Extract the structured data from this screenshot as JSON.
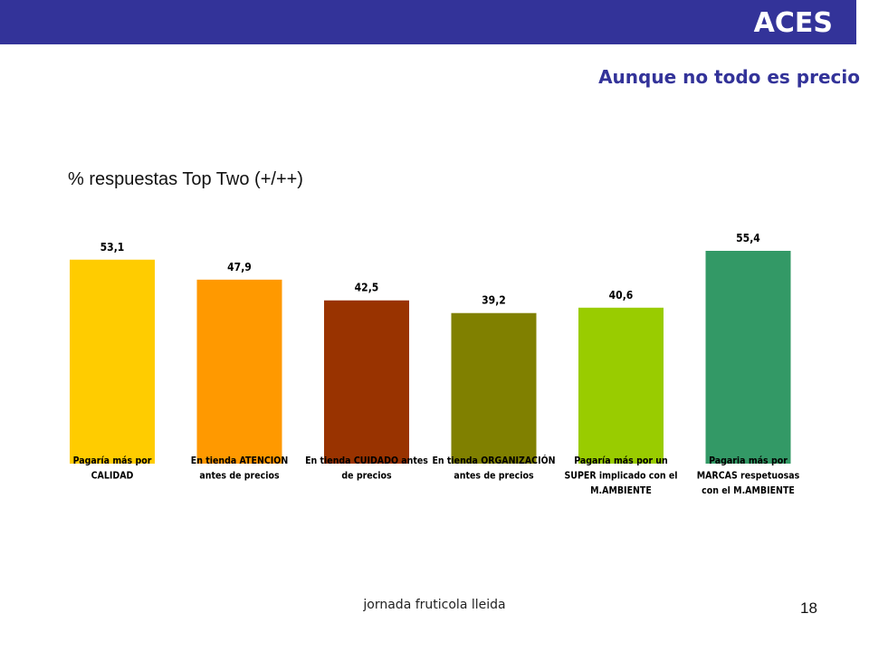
{
  "header": {
    "brand": "ACES",
    "bar_color": "#333399",
    "subtitle": "Aunque no todo es precio"
  },
  "chart_heading": "% respuestas Top Two (+/++)",
  "chart_data": {
    "type": "bar",
    "title": "",
    "xlabel": "",
    "ylabel": "",
    "ylim": [
      0,
      60
    ],
    "grid": false,
    "legend": "none",
    "categories": [
      [
        "Pagaría más por",
        "CALIDAD"
      ],
      [
        "En tienda ATENCION",
        "antes de precios"
      ],
      [
        "En tienda CUIDADO antes",
        "de precios"
      ],
      [
        "En tienda ORGANIZACIÓN",
        "antes de precios"
      ],
      [
        "Pagaría más por un",
        "SUPER implicado con el",
        "M.AMBIENTE"
      ],
      [
        "Pagaria más por",
        "MARCAS respetuosas",
        "con el M.AMBIENTE"
      ]
    ],
    "values": [
      53.1,
      47.9,
      42.5,
      39.2,
      40.6,
      55.4
    ],
    "value_labels": [
      "53,1",
      "47,9",
      "42,5",
      "39,2",
      "40,6",
      "55,4"
    ],
    "colors": [
      "#ffcc00",
      "#ff9900",
      "#993300",
      "#808000",
      "#99cc00",
      "#339966"
    ]
  },
  "footer": {
    "text": "jornada fruticola lleida",
    "page_number": "18"
  }
}
